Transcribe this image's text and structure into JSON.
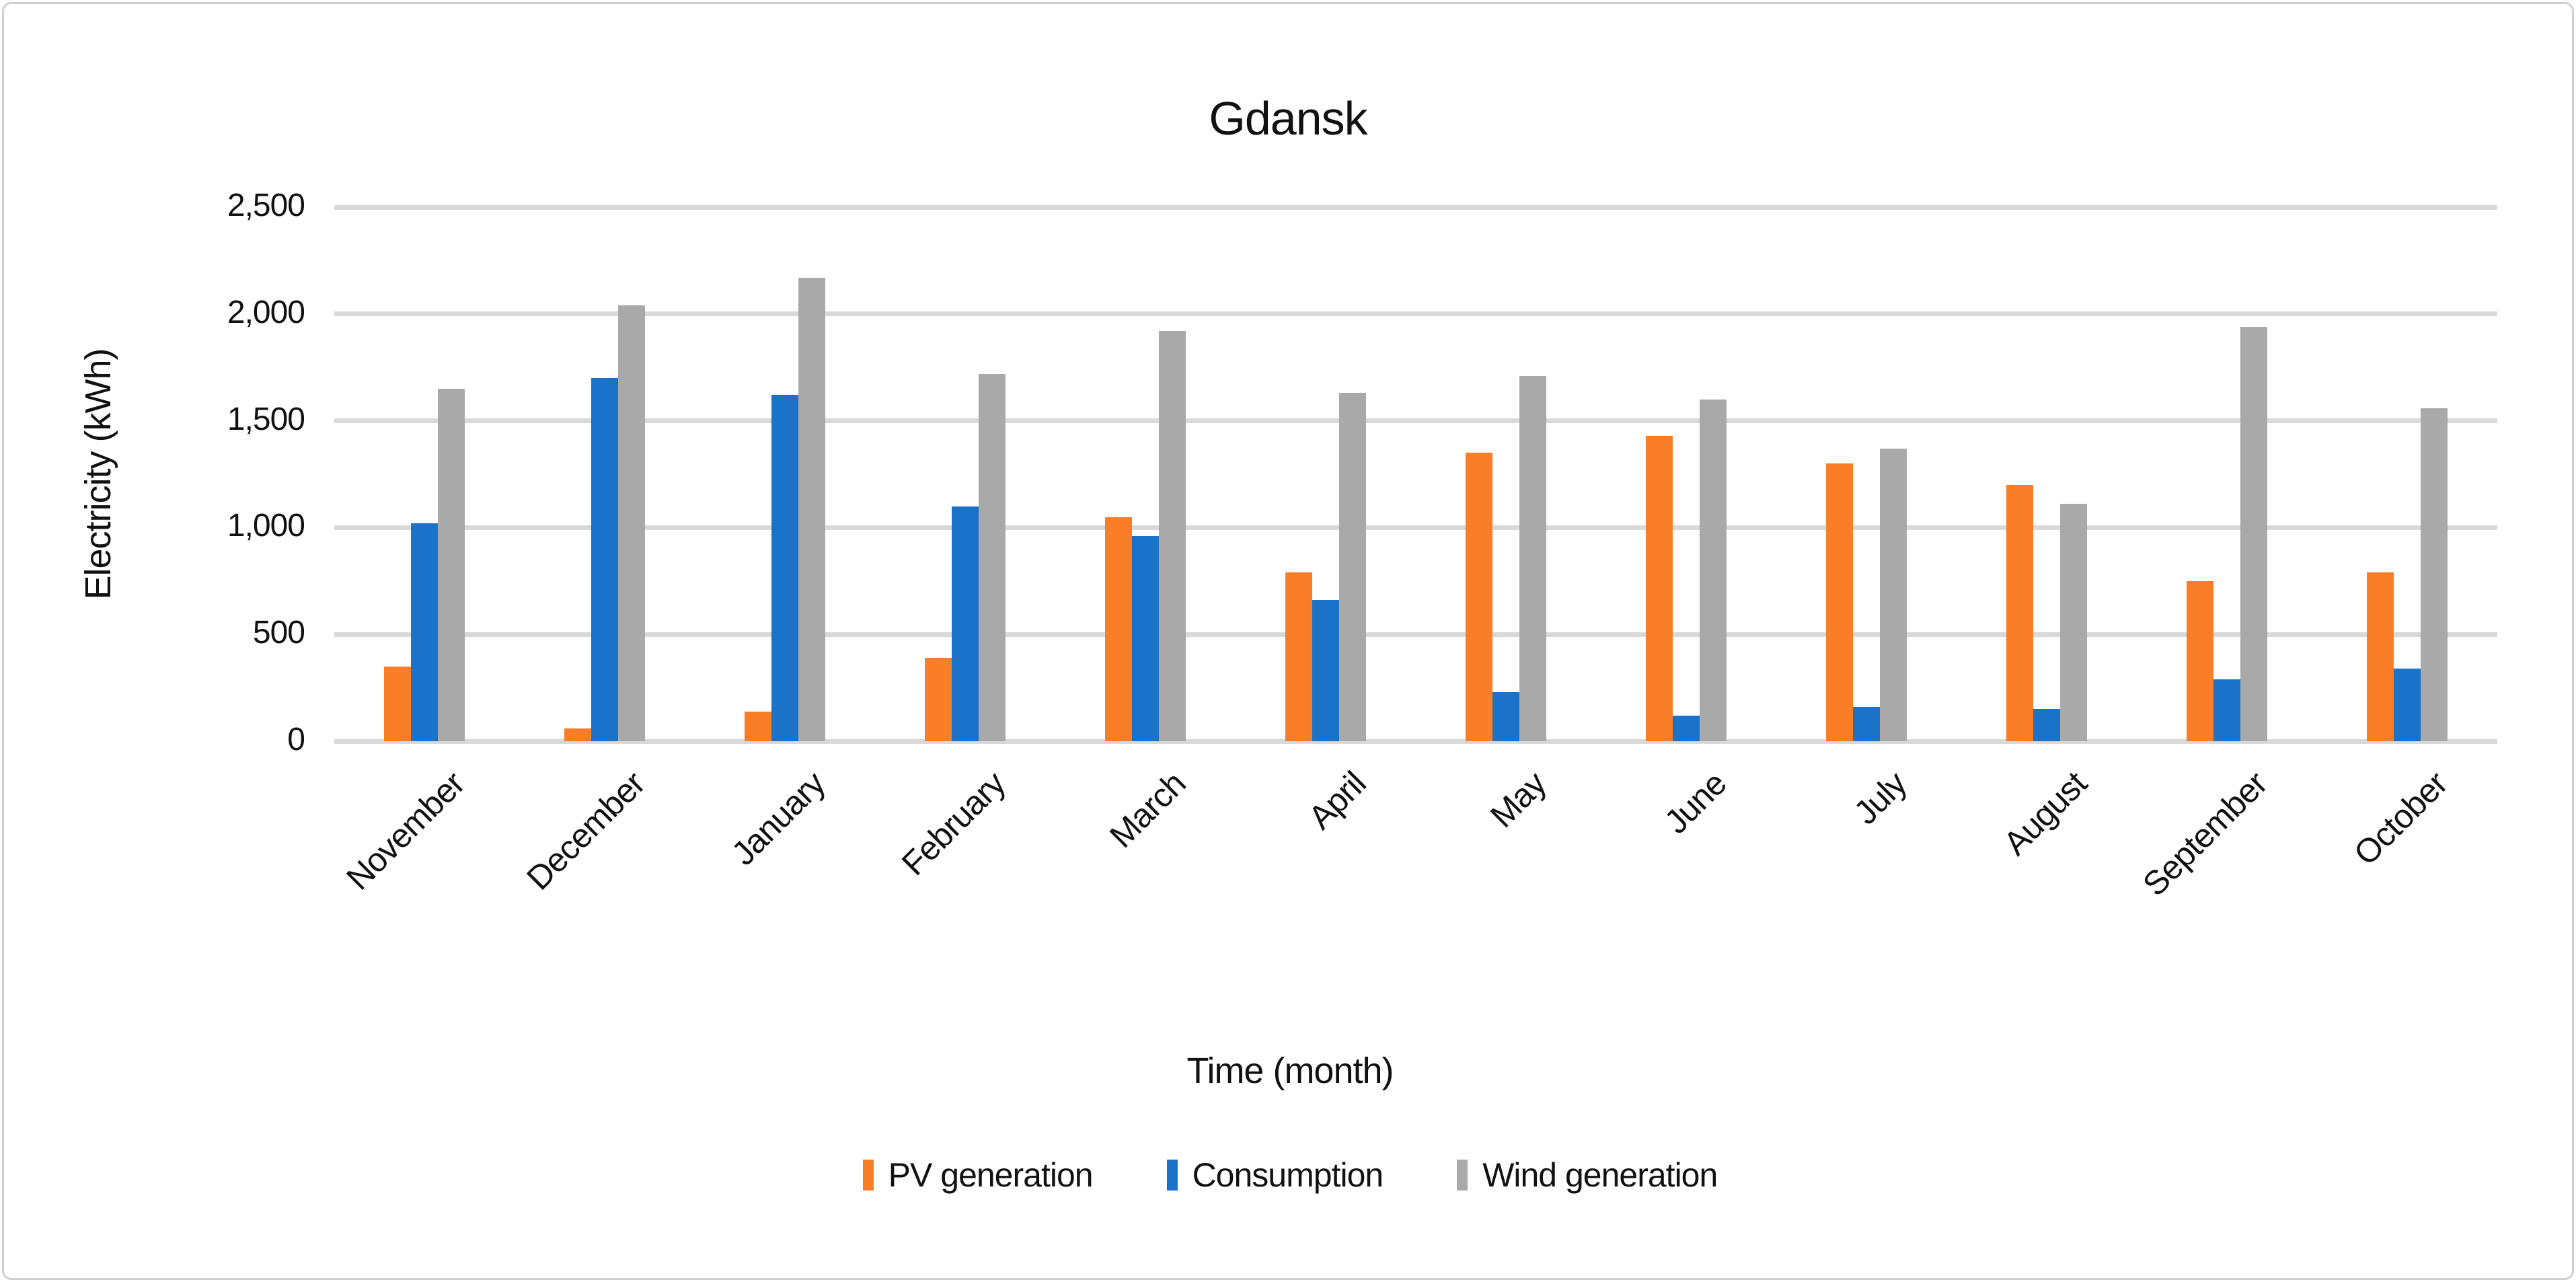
{
  "chart": {
    "title": "Gdansk",
    "y_axis": {
      "title": "Electricity (kWh)",
      "tick_labels": [
        "0",
        "500",
        "1,000",
        "1,500",
        "2,000",
        "2,500"
      ],
      "min": 0,
      "max": 2500,
      "tick_interval": 500
    },
    "x_axis": {
      "title": "Time (month)"
    },
    "colors": {
      "pv": "#fa7d28",
      "consumption": "#1a73c8",
      "wind": "#a9a9a9",
      "gridline": "#d9d9d9"
    }
  },
  "chart_data": {
    "type": "bar",
    "title": "Gdansk",
    "xlabel": "Time (month)",
    "ylabel": "Electricity (kWh)",
    "ylim": [
      0,
      2500
    ],
    "ytick_interval": 500,
    "ytick_labels": [
      "0",
      "500",
      "1,000",
      "1,500",
      "2,000",
      "2,500"
    ],
    "grid": true,
    "legend_position": "bottom",
    "categories": [
      "November",
      "December",
      "January",
      "February",
      "March",
      "April",
      "May",
      "June",
      "July",
      "August",
      "September",
      "October"
    ],
    "series": [
      {
        "name": "PV generation",
        "color": "#fa7d28",
        "values": [
          350,
          60,
          140,
          390,
          1050,
          790,
          1350,
          1430,
          1300,
          1200,
          750,
          790
        ]
      },
      {
        "name": "Consumption",
        "color": "#1a73c8",
        "values": [
          1020,
          1700,
          1620,
          1100,
          960,
          660,
          230,
          120,
          160,
          150,
          290,
          340
        ]
      },
      {
        "name": "Wind generation",
        "color": "#a9a9a9",
        "values": [
          1650,
          2040,
          2170,
          1720,
          1920,
          1630,
          1710,
          1600,
          1370,
          1110,
          1940,
          1560
        ]
      }
    ]
  }
}
